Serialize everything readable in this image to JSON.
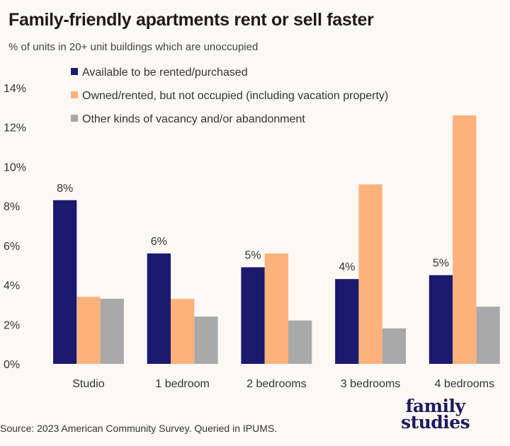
{
  "title": "Family-friendly apartments rent or sell faster",
  "subtitle": "% of units in 20+ unit buildings which are unoccupied",
  "source": "Source: 2023 American Community Survey. Queried in IPUMS.",
  "logo": {
    "line1": "family",
    "line2": "studies"
  },
  "chart_data": {
    "type": "bar",
    "title": "Family-friendly apartments rent or sell faster",
    "subtitle": "% of units in 20+ unit buildings which are unoccupied",
    "categories": [
      "Studio",
      "1 bedroom",
      "2 bedrooms",
      "3 bedrooms",
      "4 bedrooms"
    ],
    "ylim": [
      0,
      14
    ],
    "yticks": [
      "0%",
      "2%",
      "4%",
      "6%",
      "8%",
      "10%",
      "12%",
      "14%"
    ],
    "ytick_values": [
      0,
      2,
      4,
      6,
      8,
      10,
      12,
      14
    ],
    "grid": false,
    "legend_position": "top",
    "series": [
      {
        "name": "Available to be rented/purchased",
        "color": "#1b1a6e",
        "values": [
          8.3,
          5.6,
          4.9,
          4.3,
          4.5
        ],
        "data_labels": [
          "8%",
          "6%",
          "5%",
          "4%",
          "5%"
        ]
      },
      {
        "name": "Owned/rented, but not occupied (including vacation property)",
        "color": "#fdb27b",
        "values": [
          3.4,
          3.3,
          5.6,
          9.1,
          12.6
        ]
      },
      {
        "name": "Other kinds of vacancy and/or abandonment",
        "color": "#a9a9a9",
        "values": [
          3.3,
          2.4,
          2.2,
          1.8,
          2.9
        ]
      }
    ]
  }
}
